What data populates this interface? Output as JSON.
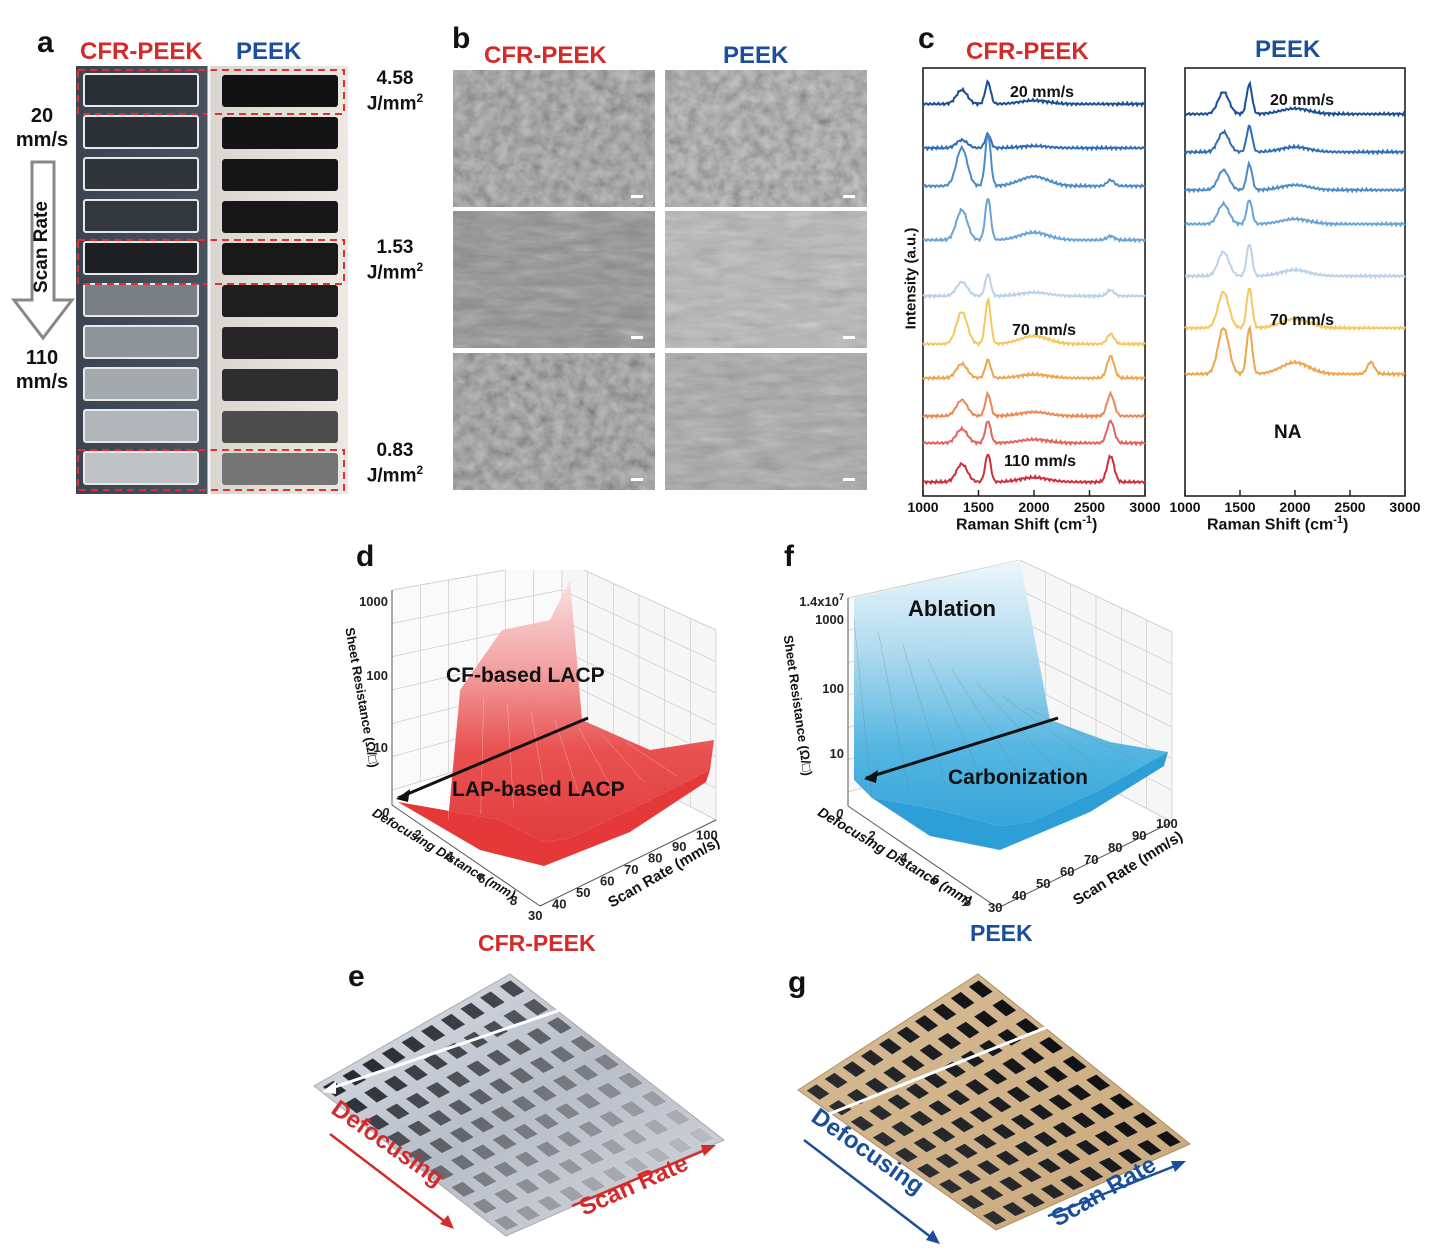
{
  "panel_a": {
    "label": "a",
    "left_title": "CFR-PEEK",
    "right_title": "PEEK",
    "speed_top": [
      "20",
      "mm/s"
    ],
    "axis_label": "Scan Rate",
    "speed_bottom": [
      "110",
      "mm/s"
    ],
    "energies": [
      {
        "value": "4.58",
        "unit": "J/mm",
        "sup": "2"
      },
      {
        "value": "1.53",
        "unit": "J/mm",
        "sup": "2"
      },
      {
        "value": "0.83",
        "unit": "J/mm",
        "sup": "2"
      }
    ]
  },
  "panel_b": {
    "label": "b",
    "left_title": "CFR-PEEK",
    "right_title": "PEEK"
  },
  "panel_c": {
    "label": "c",
    "left_title": "CFR-PEEK",
    "right_title": "PEEK",
    "ylabel": "Intensity (a.u.)",
    "xlabel": "Raman Shift (cm",
    "xlabel_sup": "-1",
    "xlabel_end": ")",
    "xticks": [
      "1000",
      "1500",
      "2000",
      "2500",
      "3000"
    ],
    "left_annotations": [
      "20 mm/s",
      "70 mm/s",
      "110 mm/s"
    ],
    "right_annotations": [
      "20 mm/s",
      "70 mm/s",
      "NA"
    ]
  },
  "panel_d": {
    "label": "d",
    "caption": "CFR-PEEK",
    "zlabel": "Sheet Resistance (Ω/□)",
    "zticks": [
      "1000",
      "100",
      "10"
    ],
    "xlabel": "Defocusing Distance (mm)",
    "xticks": [
      "0",
      "2",
      "4",
      "6",
      "8"
    ],
    "ylabel": "Scan Rate (mm/s)",
    "yticks": [
      "30",
      "40",
      "50",
      "60",
      "70",
      "80",
      "90",
      "100"
    ],
    "region_top": "CF-based LACP",
    "region_bottom": "LAP-based LACP"
  },
  "panel_f": {
    "label": "f",
    "caption": "PEEK",
    "zlabel": "Sheet Resistance (Ω/□)",
    "zticks": [
      "1.4x10",
      "1000",
      "100",
      "10"
    ],
    "ztick_top_sup": "7",
    "xlabel": "Defocusing Distance (mm)",
    "xticks": [
      "0",
      "2",
      "4",
      "6",
      "8"
    ],
    "ylabel": "Scan Rate (mm/s)",
    "yticks": [
      "30",
      "40",
      "50",
      "60",
      "70",
      "80",
      "90",
      "100"
    ],
    "region_top": "Ablation",
    "region_bottom": "Carbonization"
  },
  "panel_e": {
    "label": "e",
    "arrow_left": "Defocusing",
    "arrow_right": "Scan Rate"
  },
  "panel_g": {
    "label": "g",
    "arrow_left": "Defocusing",
    "arrow_right": "Scan Rate"
  },
  "colors": {
    "red": "#d42a2a",
    "blue": "#1b4f9b"
  }
}
